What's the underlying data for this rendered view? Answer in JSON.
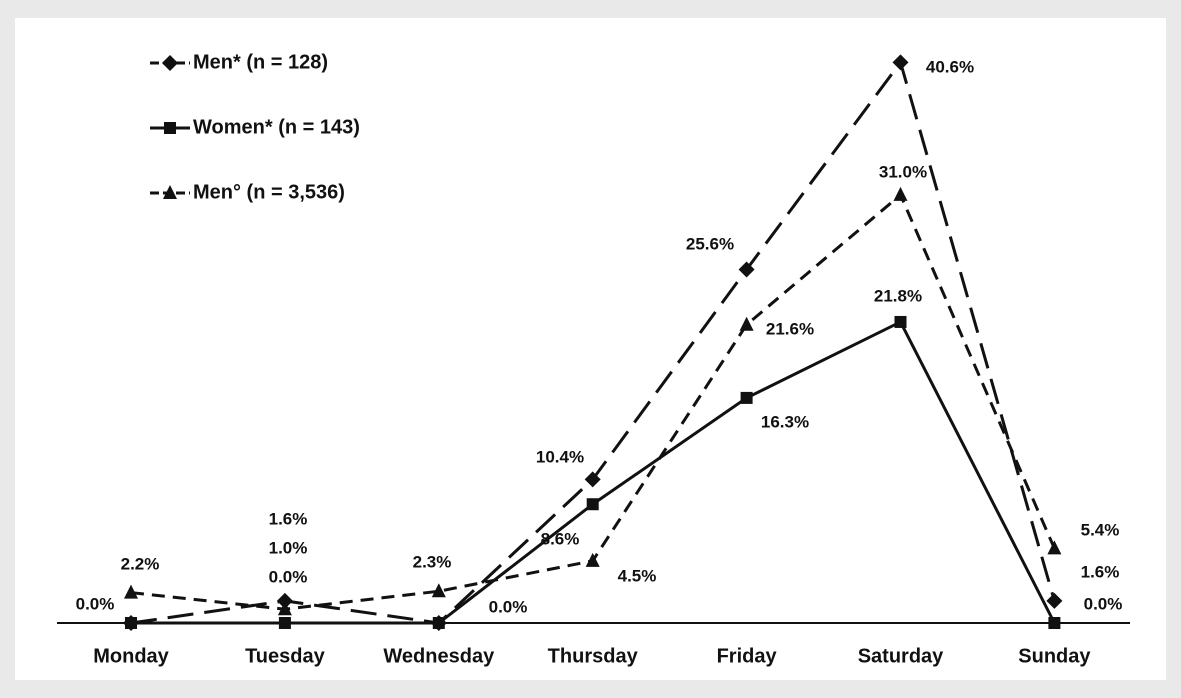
{
  "chart_data": {
    "type": "line",
    "categories": [
      "Monday",
      "Tuesday",
      "Wednesday",
      "Thursday",
      "Friday",
      "Saturday",
      "Sunday"
    ],
    "series": [
      {
        "name": "Men* (n = 128)",
        "color": "#111111",
        "marker": "diamond",
        "dash": "long",
        "values": [
          0.0,
          1.6,
          0.0,
          10.4,
          25.6,
          40.6,
          1.6
        ],
        "value_labels": [
          null,
          "1.6%",
          null,
          "10.4%",
          "25.6%",
          "40.6%",
          "1.6%"
        ]
      },
      {
        "name": "Women* (n = 143)",
        "color": "#111111",
        "marker": "square",
        "dash": "solid",
        "values": [
          0.0,
          0.0,
          0.0,
          8.6,
          16.3,
          21.8,
          0.0
        ],
        "value_labels": [
          "0.0%",
          "0.0%",
          "0.0%",
          "8.6%",
          "16.3%",
          "21.8%",
          "0.0%"
        ]
      },
      {
        "name": "Men° (n = 3,536)",
        "color": "#111111",
        "marker": "triangle",
        "dash": "short",
        "values": [
          2.2,
          1.0,
          2.3,
          4.5,
          21.6,
          31.0,
          5.4
        ],
        "value_labels": [
          "2.2%",
          "1.0%",
          "2.3%",
          "4.5%",
          "21.6%",
          "31.0%",
          "5.4%"
        ]
      }
    ],
    "ylim": [
      0,
      42
    ],
    "legend": "upper left"
  }
}
